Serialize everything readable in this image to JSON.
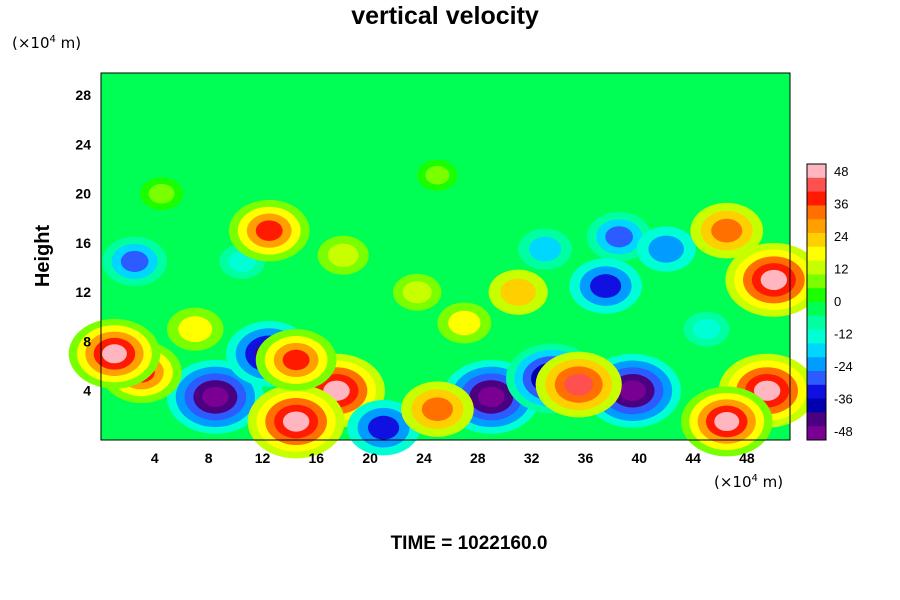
{
  "chart_data": {
    "type": "heatmap",
    "title": "vertical velocity",
    "ylabel": "Height",
    "xlabel": "",
    "x_unit": {
      "prefix": "(×10",
      "exp": "4",
      "suffix": " m)"
    },
    "y_unit": {
      "prefix": "(×10",
      "exp": "4",
      "suffix": " m)"
    },
    "x_ticks": [
      4,
      8,
      12,
      16,
      20,
      24,
      28,
      32,
      36,
      40,
      44,
      48
    ],
    "y_ticks": [
      4,
      8,
      12,
      16,
      20,
      24,
      28
    ],
    "xlim": [
      0,
      51.2
    ],
    "ylim": [
      0,
      29.8
    ],
    "colorbar": {
      "ticks": [
        48,
        36,
        24,
        12,
        0,
        -12,
        -24,
        -36,
        -48
      ],
      "range": [
        -48,
        48
      ],
      "colors": [
        "#ffb6c1",
        "#ff5050",
        "#ff1a00",
        "#ff7000",
        "#ffa000",
        "#ffd000",
        "#ffff00",
        "#c8ff00",
        "#7aff00",
        "#1aff00",
        "#00ff55",
        "#00ffa0",
        "#00ffd5",
        "#00d7ff",
        "#009cff",
        "#2c5cff",
        "#1010e0",
        "#0000b0",
        "#4a0080",
        "#7a0094"
      ]
    },
    "features": [
      {
        "x": 8.5,
        "y": 3.5,
        "value": -48
      },
      {
        "x": 12.5,
        "y": 7.0,
        "value": -40
      },
      {
        "x": 17.5,
        "y": 4.0,
        "value": 48
      },
      {
        "x": 14.5,
        "y": 1.5,
        "value": 48
      },
      {
        "x": 14.5,
        "y": 6.5,
        "value": 36
      },
      {
        "x": 29.0,
        "y": 3.5,
        "value": -48
      },
      {
        "x": 33.5,
        "y": 5.0,
        "value": -44
      },
      {
        "x": 39.5,
        "y": 4.0,
        "value": -48
      },
      {
        "x": 49.5,
        "y": 4.0,
        "value": 48
      },
      {
        "x": 50.0,
        "y": 13.0,
        "value": 48
      },
      {
        "x": 3.0,
        "y": 5.5,
        "value": 36
      },
      {
        "x": 1.0,
        "y": 7.0,
        "value": 44
      },
      {
        "x": 21.0,
        "y": 1.0,
        "value": -30
      },
      {
        "x": 25.0,
        "y": 2.5,
        "value": 30
      },
      {
        "x": 35.5,
        "y": 4.5,
        "value": 40
      },
      {
        "x": 46.5,
        "y": 1.5,
        "value": 44
      },
      {
        "x": 18.0,
        "y": 15.0,
        "value": 14
      },
      {
        "x": 23.5,
        "y": 12.0,
        "value": 12
      },
      {
        "x": 33.0,
        "y": 15.5,
        "value": -16
      },
      {
        "x": 38.5,
        "y": 16.5,
        "value": -24
      },
      {
        "x": 2.5,
        "y": 14.5,
        "value": -24
      },
      {
        "x": 10.5,
        "y": 14.5,
        "value": -10
      },
      {
        "x": 42.0,
        "y": 15.5,
        "value": -20
      },
      {
        "x": 12.5,
        "y": 17.0,
        "value": 36
      },
      {
        "x": 46.5,
        "y": 17.0,
        "value": 30
      },
      {
        "x": 31.0,
        "y": 12.0,
        "value": 20
      },
      {
        "x": 37.5,
        "y": 12.5,
        "value": -30
      },
      {
        "x": 4.5,
        "y": 20.0,
        "value": 8
      },
      {
        "x": 25.0,
        "y": 21.5,
        "value": 6
      },
      {
        "x": 7.0,
        "y": 9.0,
        "value": 18
      },
      {
        "x": 45.0,
        "y": 9.0,
        "value": -10
      },
      {
        "x": 27.0,
        "y": 9.5,
        "value": 16
      }
    ]
  },
  "time_label": "TIME = 1022160.0"
}
